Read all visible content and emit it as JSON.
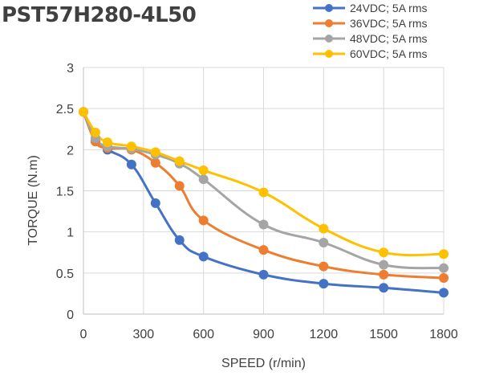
{
  "chart_data": {
    "type": "line",
    "title": "PST57H280-4L50",
    "xlabel": "SPEED (r/min)",
    "ylabel": "TORQUE (N.m)",
    "xlim": [
      0,
      1800
    ],
    "ylim": [
      0,
      3
    ],
    "xticks": [
      0,
      300,
      600,
      900,
      1200,
      1500,
      1800
    ],
    "yticks": [
      0,
      0.5,
      1,
      1.5,
      2,
      2.5,
      3
    ],
    "xtick_labels": [
      "0",
      "300",
      "600",
      "900",
      "1200",
      "1500",
      "1800"
    ],
    "ytick_labels": [
      "0",
      "0.5",
      "1",
      "1.5",
      "2",
      "2.5",
      "3"
    ],
    "grid": true,
    "legend_position": "top-right",
    "series": [
      {
        "name": "24VDC; 5A rms",
        "color": "#4472C4",
        "x": [
          0,
          60,
          120,
          240,
          360,
          480,
          600,
          900,
          1200,
          1500,
          1800
        ],
        "y": [
          2.46,
          2.1,
          2.0,
          1.82,
          1.35,
          0.9,
          0.7,
          0.48,
          0.37,
          0.32,
          0.26
        ]
      },
      {
        "name": "36VDC; 5A rms",
        "color": "#ED7D31",
        "x": [
          0,
          60,
          120,
          240,
          360,
          480,
          600,
          900,
          1200,
          1500,
          1800
        ],
        "y": [
          2.46,
          2.1,
          2.02,
          2.0,
          1.84,
          1.56,
          1.14,
          0.78,
          0.58,
          0.48,
          0.44
        ]
      },
      {
        "name": "48VDC; 5A rms",
        "color": "#A5A5A5",
        "x": [
          0,
          60,
          120,
          240,
          360,
          480,
          600,
          900,
          1200,
          1500,
          1800
        ],
        "y": [
          2.46,
          2.14,
          2.04,
          2.01,
          1.94,
          1.83,
          1.64,
          1.09,
          0.87,
          0.6,
          0.56
        ]
      },
      {
        "name": "60VDC; 5A rms",
        "color": "#FFC000",
        "x": [
          0,
          60,
          120,
          240,
          360,
          480,
          600,
          900,
          1200,
          1500,
          1800
        ],
        "y": [
          2.46,
          2.21,
          2.09,
          2.04,
          1.97,
          1.86,
          1.75,
          1.48,
          1.04,
          0.75,
          0.73
        ]
      }
    ]
  }
}
